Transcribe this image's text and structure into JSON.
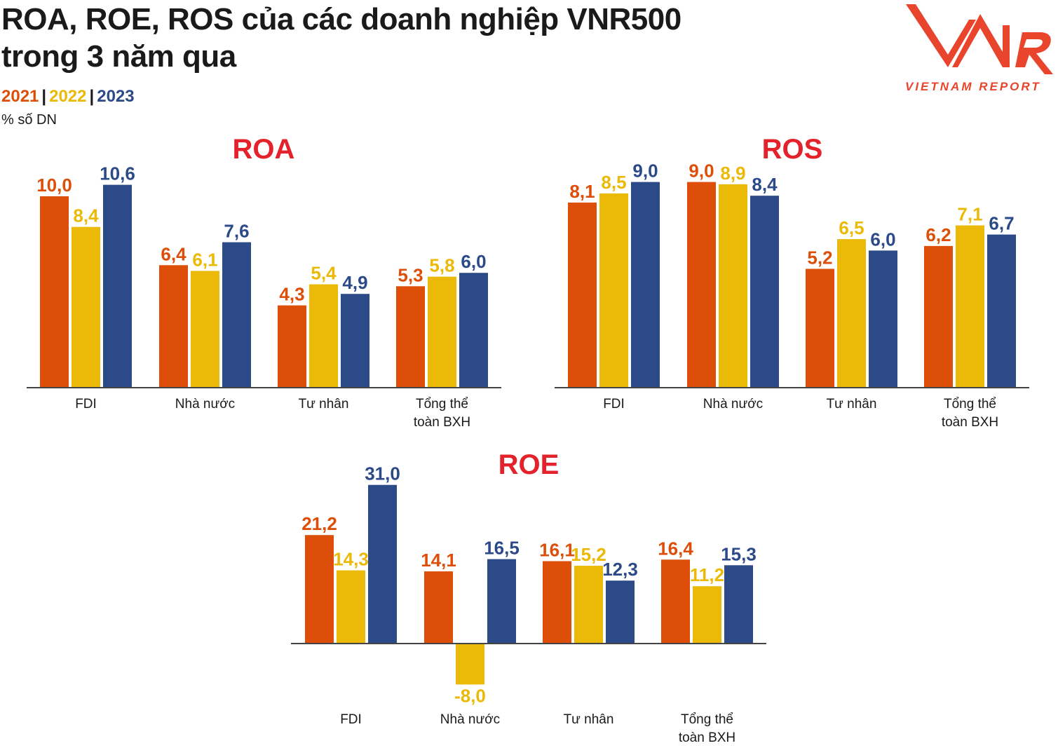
{
  "header": {
    "title_line1": "ROA, ROE, ROS của các doanh nghiệp VNR500",
    "title_line2": "trong 3 năm qua",
    "legend": [
      "2021",
      "2022",
      "2023"
    ],
    "unit": "% số DN"
  },
  "logo": {
    "tagline": "VIETNAM REPORT"
  },
  "colors": {
    "2021": "#dd4e08",
    "2022": "#ebb907",
    "2023": "#2c4a88",
    "title": "#e3222b"
  },
  "chart_data": [
    {
      "type": "bar",
      "title": "ROA",
      "categories": [
        [
          "FDI"
        ],
        [
          "Nhà nước"
        ],
        [
          "Tư nhân"
        ],
        [
          "Tổng thể",
          "toàn BXH"
        ]
      ],
      "series": [
        {
          "name": "2021",
          "values": [
            10.0,
            6.4,
            4.3,
            5.3
          ],
          "labels": [
            "10,0",
            "6,4",
            "4,3",
            "5,3"
          ]
        },
        {
          "name": "2022",
          "values": [
            8.4,
            6.1,
            5.4,
            5.8
          ],
          "labels": [
            "8,4",
            "6,1",
            "5,4",
            "5,8"
          ]
        },
        {
          "name": "2023",
          "values": [
            10.6,
            7.6,
            4.9,
            6.0
          ],
          "labels": [
            "10,6",
            "7,6",
            "4,9",
            "6,0"
          ]
        }
      ]
    },
    {
      "type": "bar",
      "title": "ROS",
      "categories": [
        [
          "FDI"
        ],
        [
          "Nhà nước"
        ],
        [
          "Tư nhân"
        ],
        [
          "Tổng thể",
          "toàn BXH"
        ]
      ],
      "series": [
        {
          "name": "2021",
          "values": [
            8.1,
            9.0,
            5.2,
            6.2
          ],
          "labels": [
            "8,1",
            "9,0",
            "5,2",
            "6,2"
          ]
        },
        {
          "name": "2022",
          "values": [
            8.5,
            8.9,
            6.5,
            7.1
          ],
          "labels": [
            "8,5",
            "8,9",
            "6,5",
            "7,1"
          ]
        },
        {
          "name": "2023",
          "values": [
            9.0,
            8.4,
            6.0,
            6.7
          ],
          "labels": [
            "9,0",
            "8,4",
            "6,0",
            "6,7"
          ]
        }
      ]
    },
    {
      "type": "bar",
      "title": "ROE",
      "categories": [
        [
          "FDI"
        ],
        [
          "Nhà nước"
        ],
        [
          "Tư nhân"
        ],
        [
          "Tổng thể",
          "toàn BXH"
        ]
      ],
      "series": [
        {
          "name": "2021",
          "values": [
            21.2,
            14.1,
            16.1,
            16.4
          ],
          "labels": [
            "21,2",
            "14,1",
            "16,1",
            "16,4"
          ]
        },
        {
          "name": "2022",
          "values": [
            14.3,
            -8.0,
            15.2,
            11.2
          ],
          "labels": [
            "14,3",
            "-8,0",
            "15,2",
            "11,2"
          ]
        },
        {
          "name": "2023",
          "values": [
            31.0,
            16.5,
            12.3,
            15.3
          ],
          "labels": [
            "31,0",
            "16,5",
            "12,3",
            "15,3"
          ]
        }
      ]
    }
  ]
}
